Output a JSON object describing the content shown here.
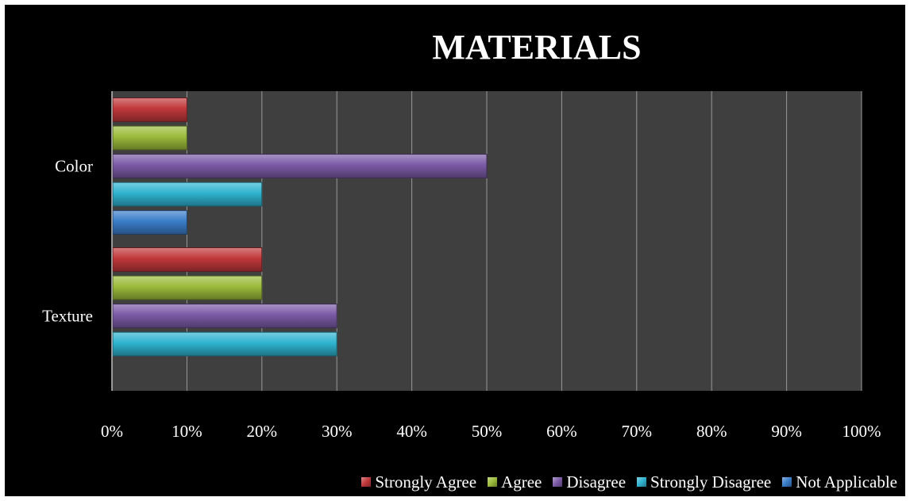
{
  "chart_data": {
    "type": "bar",
    "orientation": "horizontal",
    "title": "MATERIALS",
    "categories": [
      "Texture",
      "Color"
    ],
    "x_ticks": [
      "0%",
      "10%",
      "20%",
      "30%",
      "40%",
      "50%",
      "60%",
      "70%",
      "80%",
      "90%",
      "100%"
    ],
    "xlim": [
      0,
      100
    ],
    "grid": true,
    "legend_position": "bottom",
    "series": [
      {
        "name": "Strongly Agree",
        "color": "#c0383a",
        "values": [
          20,
          10
        ]
      },
      {
        "name": "Agree",
        "color": "#9bbb3b",
        "values": [
          20,
          10
        ]
      },
      {
        "name": "Disagree",
        "color": "#7b5aa6",
        "values": [
          30,
          50
        ]
      },
      {
        "name": "Strongly Disagree",
        "color": "#2fb3cf",
        "values": [
          30,
          20
        ]
      },
      {
        "name": "Not Applicable",
        "color": "#3a7dc9",
        "values": [
          null,
          10
        ]
      }
    ]
  }
}
